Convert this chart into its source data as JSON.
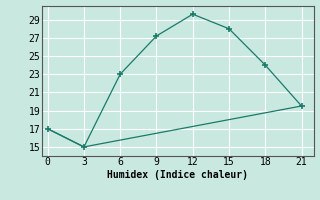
{
  "title": "",
  "xlabel": "Humidex (Indice chaleur)",
  "background_color": "#c8e8e0",
  "grid_color": "#ffffff",
  "line_color": "#1a7a6a",
  "line1_x": [
    0,
    3,
    6,
    9,
    12,
    15,
    18,
    21
  ],
  "line1_y": [
    17,
    15,
    23,
    27.2,
    29.6,
    28,
    24,
    19.5
  ],
  "line2_x": [
    0,
    3,
    21
  ],
  "line2_y": [
    17,
    15,
    19.5
  ],
  "xlim": [
    -0.5,
    22
  ],
  "ylim": [
    14.0,
    30.5
  ],
  "xticks": [
    0,
    3,
    6,
    9,
    12,
    15,
    18,
    21
  ],
  "yticks": [
    15,
    17,
    19,
    21,
    23,
    25,
    27,
    29
  ],
  "xlabel_fontsize": 7,
  "tick_fontsize": 7,
  "marker": "+"
}
